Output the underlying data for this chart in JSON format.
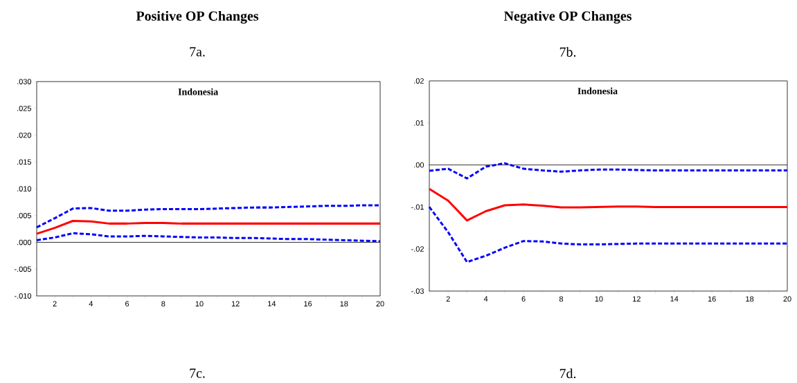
{
  "chart_data": [
    {
      "type": "line",
      "title": "Positive OP Changes",
      "subtitle": "7a.",
      "annotations": [
        "Indonesia",
        "7c."
      ],
      "x": [
        1,
        2,
        3,
        4,
        5,
        6,
        7,
        8,
        9,
        10,
        11,
        12,
        13,
        14,
        15,
        16,
        17,
        18,
        19,
        20
      ],
      "series": [
        {
          "color": "#ff0000",
          "line_style": "solid",
          "values": [
            0.0016,
            0.0027,
            0.004,
            0.0039,
            0.0035,
            0.0035,
            0.0036,
            0.0036,
            0.0035,
            0.0035,
            0.0035,
            0.0035,
            0.0035,
            0.0035,
            0.0035,
            0.0035,
            0.0035,
            0.0035,
            0.0035,
            0.0035
          ]
        },
        {
          "color": "#0000ff",
          "line_style": "dashed",
          "values": [
            0.0028,
            0.0045,
            0.0063,
            0.0064,
            0.0059,
            0.0059,
            0.0061,
            0.0062,
            0.0062,
            0.0062,
            0.0063,
            0.0064,
            0.0065,
            0.0065,
            0.0066,
            0.0067,
            0.0068,
            0.0068,
            0.0069,
            0.0069
          ]
        },
        {
          "color": "#0000ff",
          "line_style": "dashed",
          "values": [
            0.0004,
            0.0009,
            0.0017,
            0.0015,
            0.0011,
            0.0011,
            0.0012,
            0.0011,
            0.001,
            0.0009,
            0.0009,
            0.0008,
            0.0008,
            0.0007,
            0.0006,
            0.0006,
            0.0005,
            0.0004,
            0.0003,
            0.0002
          ]
        }
      ],
      "xlim": [
        1,
        20
      ],
      "xticks": [
        {
          "value": 1,
          "label": null
        },
        2,
        {
          "value": 3,
          "label": null
        },
        4,
        {
          "value": 5,
          "label": null
        },
        6,
        {
          "value": 7,
          "label": null
        },
        8,
        {
          "value": 9,
          "label": null
        },
        10,
        {
          "value": 11,
          "label": null
        },
        12,
        {
          "value": 13,
          "label": null
        },
        14,
        {
          "value": 15,
          "label": null
        },
        16,
        {
          "value": 17,
          "label": null
        },
        18,
        {
          "value": 19,
          "label": null
        },
        20
      ],
      "ylim": [
        -0.01,
        0.03
      ],
      "yticks": [
        {
          "value": -0.01,
          "label": "-.010"
        },
        {
          "value": -0.005,
          "label": "-.005"
        },
        {
          "value": 0,
          "label": ".000"
        },
        {
          "value": 0.005,
          "label": ".005"
        },
        {
          "value": 0.01,
          "label": ".010"
        },
        {
          "value": 0.015,
          "label": ".015"
        },
        {
          "value": 0.02,
          "label": ".020"
        },
        {
          "value": 0.025,
          "label": ".025"
        },
        {
          "value": 0.03,
          "label": ".030"
        }
      ],
      "ref_lines": [
        {
          "axis": "y",
          "value": 0,
          "color": "#000000"
        }
      ]
    },
    {
      "type": "line",
      "title": "Negative OP Changes",
      "subtitle": "7b.",
      "annotations": [
        "Indonesia",
        "7d."
      ],
      "x": [
        1,
        2,
        3,
        4,
        5,
        6,
        7,
        8,
        9,
        10,
        11,
        12,
        13,
        14,
        15,
        16,
        17,
        18,
        19,
        20
      ],
      "series": [
        {
          "color": "#ff0000",
          "line_style": "solid",
          "values": [
            -0.0057,
            -0.0085,
            -0.0132,
            -0.011,
            -0.0096,
            -0.0094,
            -0.0097,
            -0.0101,
            -0.0101,
            -0.01,
            -0.0099,
            -0.0099,
            -0.01,
            -0.01,
            -0.01,
            -0.01,
            -0.01,
            -0.01,
            -0.01,
            -0.01
          ]
        },
        {
          "color": "#0000ff",
          "line_style": "dashed",
          "values": [
            -0.0014,
            -0.0009,
            -0.0032,
            -0.0004,
            0.0004,
            -0.0009,
            -0.0013,
            -0.0016,
            -0.0013,
            -0.0011,
            -0.0011,
            -0.0012,
            -0.0013,
            -0.0013,
            -0.0013,
            -0.0013,
            -0.0013,
            -0.0013,
            -0.0013,
            -0.0013
          ]
        },
        {
          "color": "#0000ff",
          "line_style": "dashed",
          "values": [
            -0.01,
            -0.016,
            -0.0231,
            -0.0216,
            -0.0197,
            -0.0181,
            -0.0182,
            -0.0187,
            -0.0189,
            -0.0189,
            -0.0188,
            -0.0187,
            -0.0187,
            -0.0187,
            -0.0187,
            -0.0187,
            -0.0187,
            -0.0187,
            -0.0187,
            -0.0187
          ]
        }
      ],
      "xlim": [
        1,
        20
      ],
      "xticks": [
        {
          "value": 1,
          "label": null
        },
        2,
        {
          "value": 3,
          "label": null
        },
        4,
        {
          "value": 5,
          "label": null
        },
        6,
        {
          "value": 7,
          "label": null
        },
        8,
        {
          "value": 9,
          "label": null
        },
        10,
        {
          "value": 11,
          "label": null
        },
        12,
        {
          "value": 13,
          "label": null
        },
        14,
        {
          "value": 15,
          "label": null
        },
        16,
        {
          "value": 17,
          "label": null
        },
        18,
        {
          "value": 19,
          "label": null
        },
        20
      ],
      "ylim": [
        -0.03,
        0.02
      ],
      "yticks": [
        {
          "value": -0.03,
          "label": "-.03"
        },
        {
          "value": -0.02,
          "label": "-.02"
        },
        {
          "value": -0.01,
          "label": "-.01"
        },
        {
          "value": 0,
          "label": ".00"
        },
        {
          "value": 0.01,
          "label": ".01"
        },
        {
          "value": 0.02,
          "label": ".02"
        }
      ],
      "ref_lines": [
        {
          "axis": "y",
          "value": 0,
          "color": "#000000"
        }
      ]
    }
  ]
}
